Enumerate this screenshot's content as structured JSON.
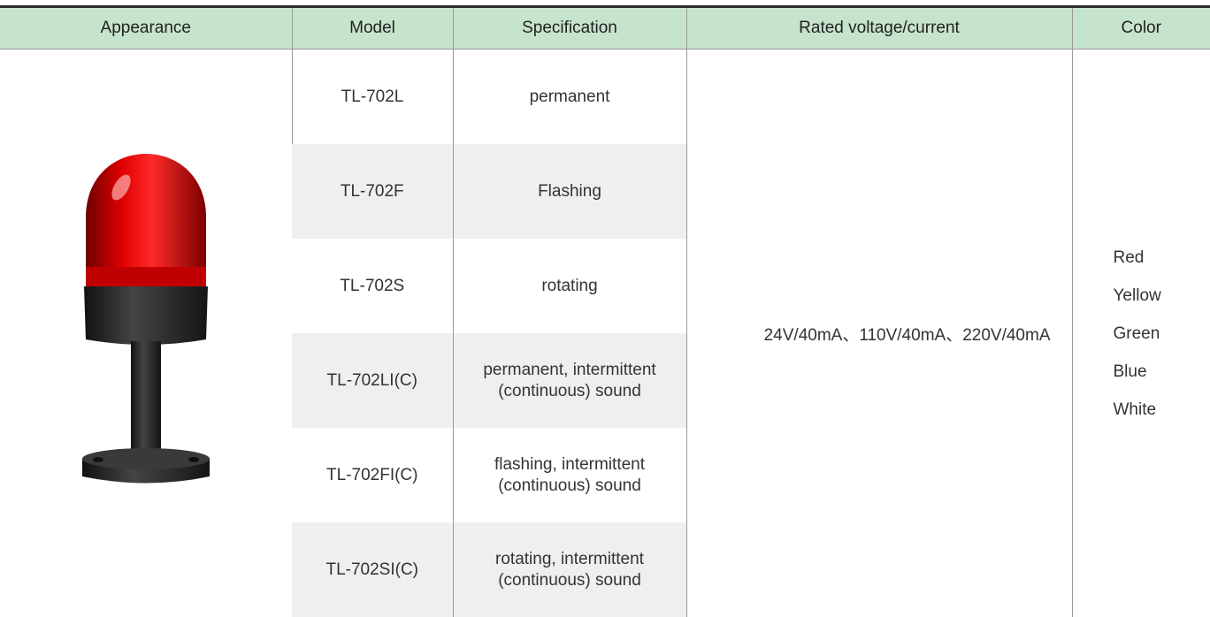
{
  "table": {
    "header": [
      "Appearance",
      "Model",
      "Specification",
      "Rated voltage/current",
      "Color"
    ],
    "rows": [
      {
        "model": "TL-702L",
        "specification": [
          "permanent"
        ]
      },
      {
        "model": "TL-702F",
        "specification": [
          "Flashing"
        ]
      },
      {
        "model": "TL-702S",
        "specification": [
          "rotating"
        ]
      },
      {
        "model": "TL-702LI(C)",
        "specification": [
          "permanent, intermittent",
          "(continuous) sound"
        ]
      },
      {
        "model": "TL-702FI(C)",
        "specification": [
          "flashing, intermittent",
          "(continuous) sound"
        ]
      },
      {
        "model": "TL-702SI(C)",
        "specification": [
          "rotating, intermittent",
          "(continuous) sound"
        ]
      }
    ],
    "rated": "24V/40mA、110V/40mA、220V/40mA",
    "colors": [
      "Red",
      "Yellow",
      "Green",
      "Blue",
      "White"
    ]
  }
}
